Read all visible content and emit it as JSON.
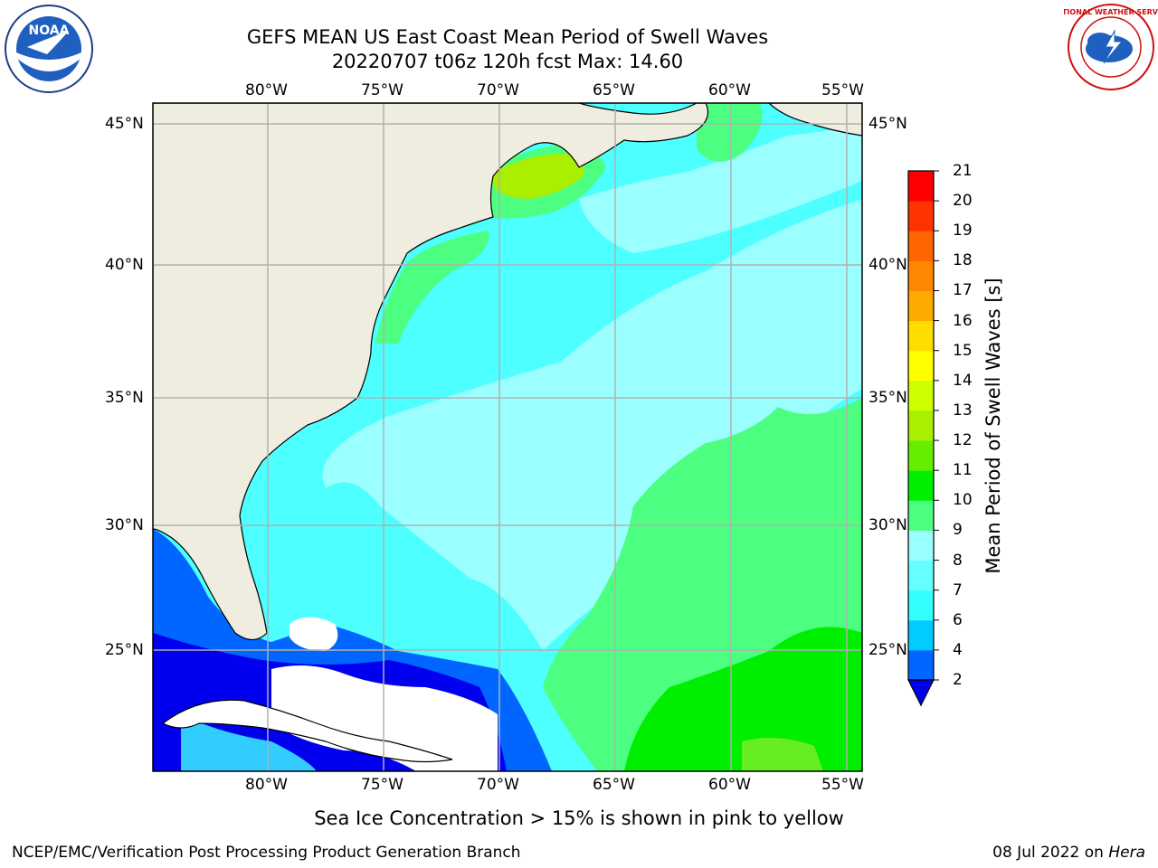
{
  "header": {
    "title_line1": "GEFS MEAN US East Coast Mean Period of Swell Waves",
    "title_line2": "20220707 t06z 120h fcst   Max: 14.60"
  },
  "logos": {
    "left": {
      "name": "noaa-logo",
      "text": "NOAA"
    },
    "right": {
      "name": "nws-logo",
      "text": "NATIONAL WEATHER SERVICE"
    }
  },
  "map": {
    "lon_ticks": [
      "80°W",
      "75°W",
      "70°W",
      "65°W",
      "60°W",
      "55°W"
    ],
    "lat_ticks": [
      "45°N",
      "40°N",
      "35°N",
      "30°N",
      "25°N"
    ],
    "lon_range": [
      -84.3,
      -53.5
    ],
    "lat_range": [
      20.3,
      46.0
    ],
    "grid": true,
    "colors": {
      "land": "#efeddf",
      "no_data": "#ffffff",
      "coastline": "#000000",
      "grid": "#b0b0b0"
    }
  },
  "colorbar": {
    "label": "Mean Period of Swell Waves [s]",
    "ticks": [
      "2",
      "4",
      "6",
      "7",
      "8",
      "9",
      "10",
      "11",
      "12",
      "13",
      "14",
      "15",
      "16",
      "17",
      "18",
      "19",
      "20",
      "21"
    ],
    "levels": [
      2,
      4,
      6,
      7,
      8,
      9,
      10,
      11,
      12,
      13,
      14,
      15,
      16,
      17,
      18,
      19,
      20,
      21
    ],
    "colors": [
      "#0066ff",
      "#00ccff",
      "#33ffff",
      "#66ffff",
      "#99ffff",
      "#4dff80",
      "#00ee00",
      "#66ee00",
      "#aaee00",
      "#ccff00",
      "#ffff00",
      "#ffdd00",
      "#ffaa00",
      "#ff8800",
      "#ff6600",
      "#ff3300",
      "#ff0000"
    ],
    "under_color": "#0000ee"
  },
  "footer": {
    "note": "Sea Ice Concentration > 15% is shown in pink to yellow",
    "left": "NCEP/EMC/Verification Post Processing Product Generation Branch",
    "date": "08 Jul 2022 on",
    "machine": "Hera"
  }
}
